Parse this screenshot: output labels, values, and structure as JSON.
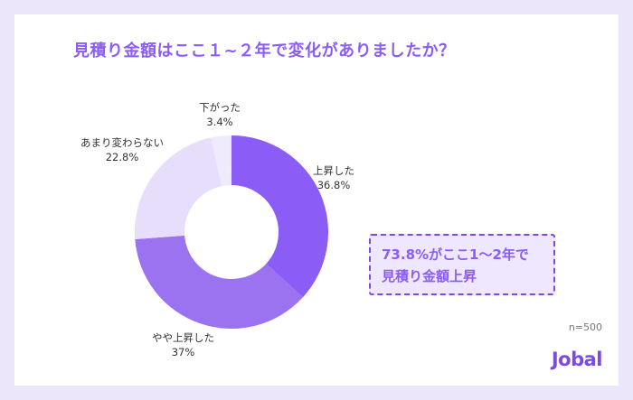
{
  "title": "見積り金額はここ１~２年で変化がありましたか？",
  "callout": {
    "line1": "73.8%がここ1～2年で",
    "line2": "見積り金額上昇"
  },
  "sample_size": "n=500",
  "brand": "Jobal",
  "colors": {
    "background": "#ece6fb",
    "accent": "#8b5cf6",
    "slices": [
      "#8b5cf6",
      "#9b72ef",
      "#e6defa",
      "#f0ebfb"
    ]
  },
  "chart_data": {
    "type": "pie",
    "categories": [
      "上昇した",
      "やや上昇した",
      "あまり変わらない",
      "下がった"
    ],
    "values": [
      36.8,
      37,
      22.8,
      3.4
    ],
    "value_labels": [
      "36.8%",
      "37%",
      "22.8%",
      "3.4%"
    ],
    "title": "見積り金額はここ１~２年で変化がありましたか？"
  }
}
